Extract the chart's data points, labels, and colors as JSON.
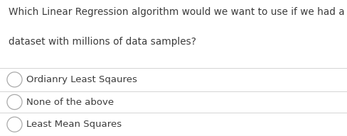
{
  "question_line1": "Which Linear Regression algorithm would we want to use if we had a training",
  "question_line2": "dataset with millions of data samples?",
  "options": [
    "Ordianry Least Sqaures",
    "None of the above",
    "Least Mean Squares"
  ],
  "bg_color": "#ffffff",
  "text_color": "#3c3c3c",
  "question_fontsize": 9.8,
  "option_fontsize": 9.5,
  "divider_color": "#d4d4d4",
  "circle_color": "#aaaaaa",
  "border_color": "#d4d4d4"
}
